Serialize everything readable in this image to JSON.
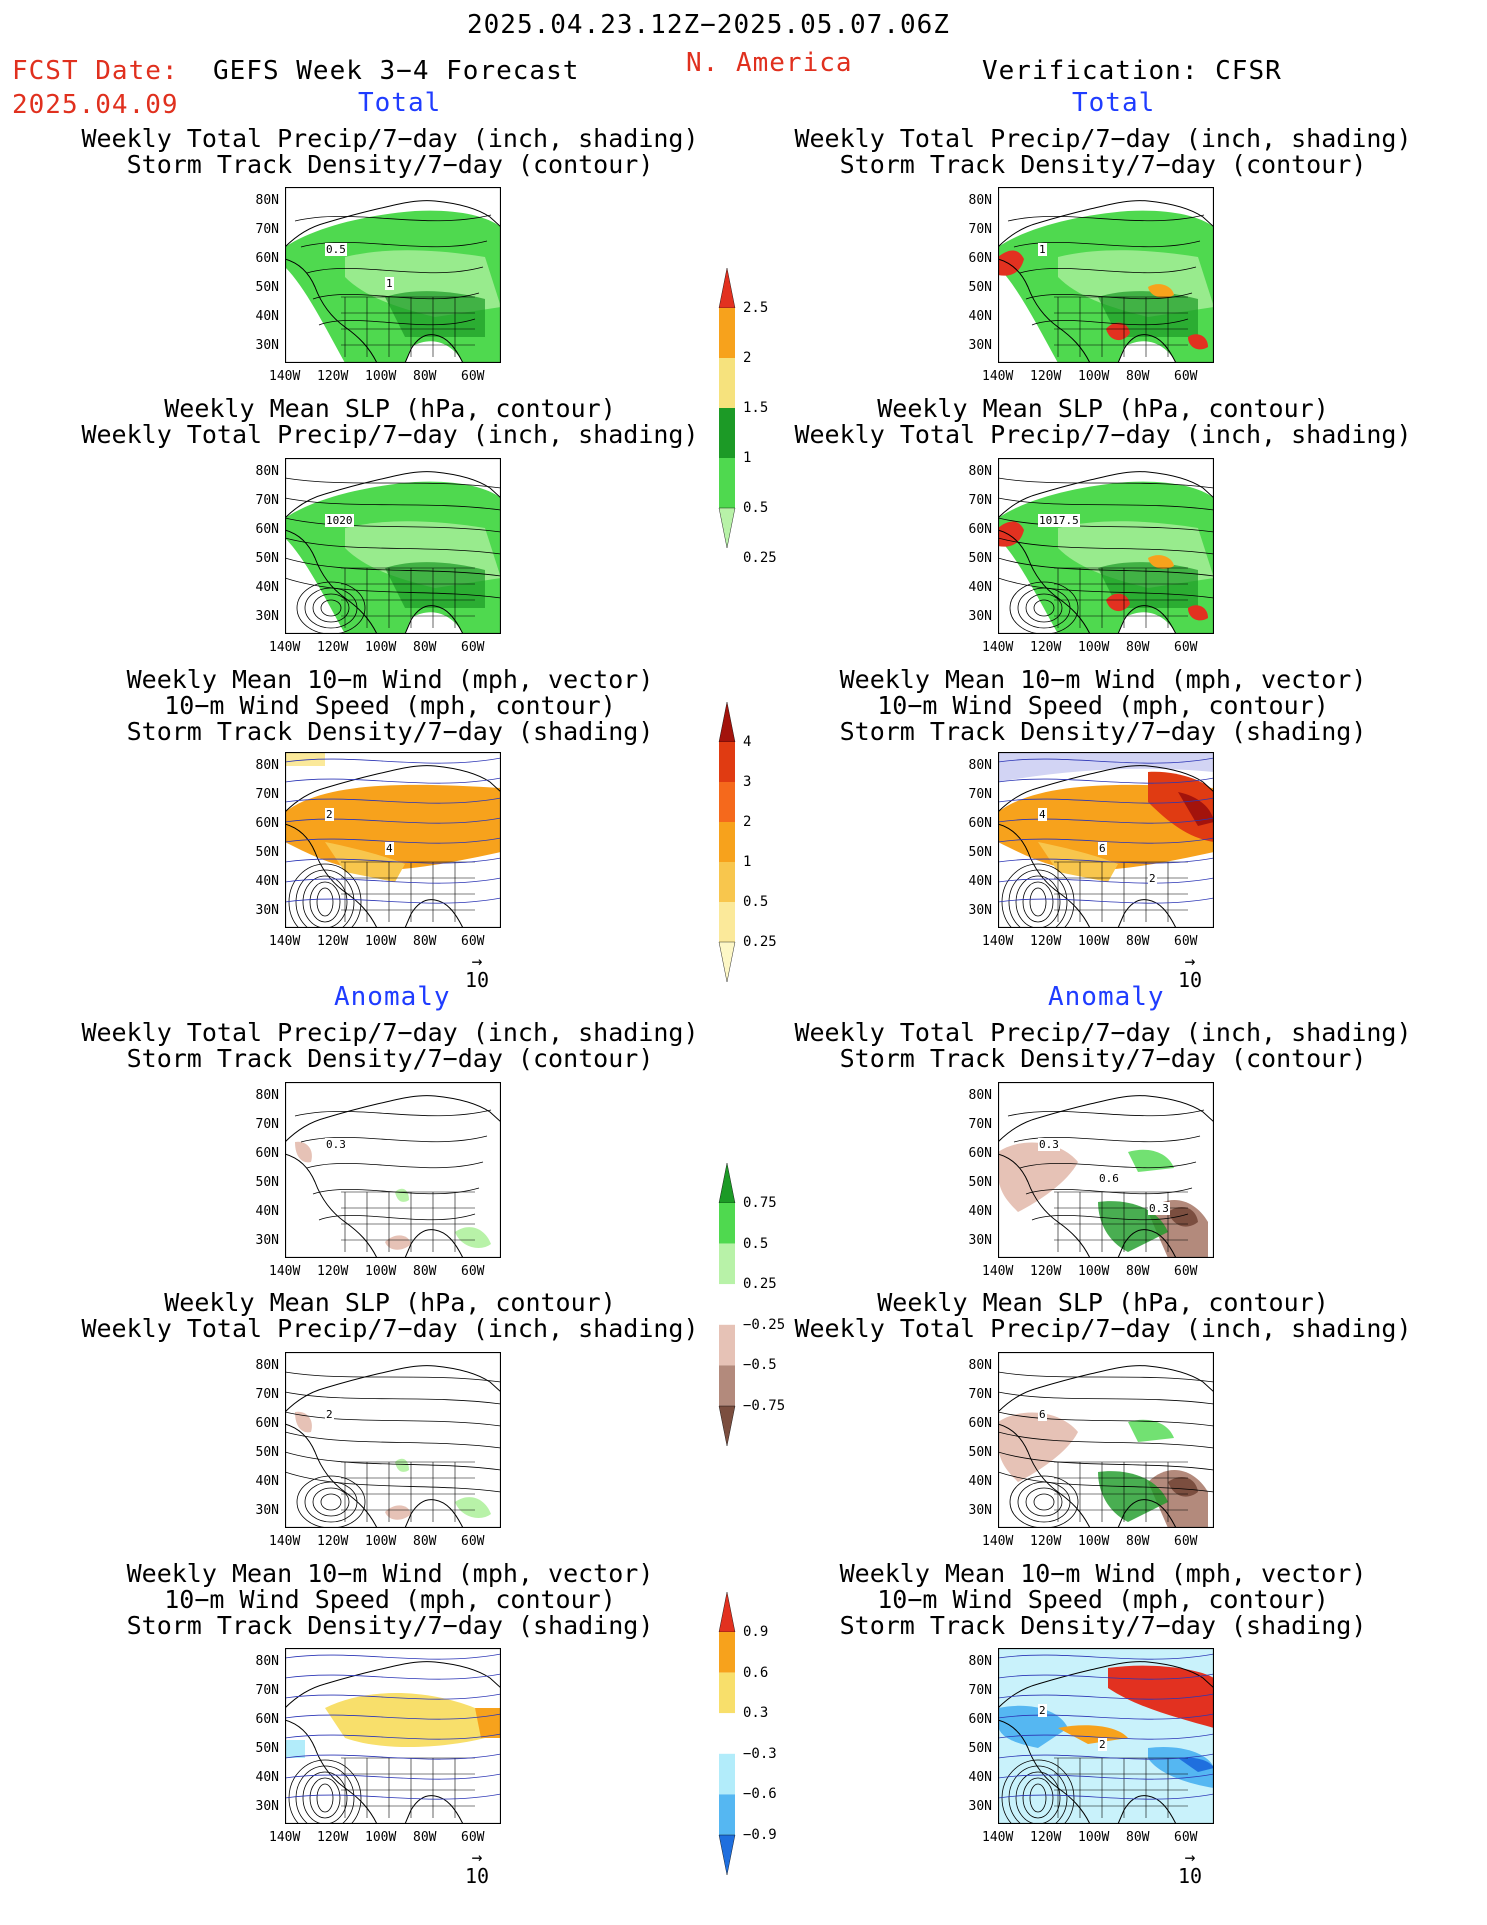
{
  "header": {
    "date_range": "2025.04.23.12Z−2025.05.07.06Z",
    "fcst_label": "FCST Date:",
    "fcst_date": "2025.04.09",
    "product": "GEFS Week 3−4 Forecast",
    "region": "N. America",
    "verification": "Verification: CFSR"
  },
  "sections": {
    "total": "Total",
    "anomaly": "Anomaly"
  },
  "titles": {
    "precip_track": [
      "Weekly Total Precip/7−day (inch, shading)",
      "Storm Track Density/7−day (contour)"
    ],
    "slp_precip": [
      "Weekly Mean SLP (hPa, contour)",
      "Weekly Total Precip/7−day (inch, shading)"
    ],
    "wind_track": [
      "Weekly Mean 10−m Wind (mph, vector)",
      "10−m Wind Speed (mph, contour)",
      "Storm Track Density/7−day (shading)"
    ]
  },
  "axes": {
    "lat_labels": [
      "80N",
      "70N",
      "60N",
      "50N",
      "40N",
      "30N"
    ],
    "lon_labels": [
      "140W",
      "120W",
      "100W",
      "80W",
      "60W"
    ]
  },
  "vector_ref": "10",
  "map_labels": {
    "fc_total_precip": [
      "0.5",
      "1"
    ],
    "fc_total_slp": [
      "1020"
    ],
    "fc_total_wind": [
      "2",
      "4"
    ],
    "ob_total_precip": [
      "1"
    ],
    "ob_total_slp": [
      "1017.5"
    ],
    "ob_total_wind": [
      "4",
      "6",
      "2"
    ],
    "fc_anom_precip": [
      "0.3"
    ],
    "fc_anom_slp": [
      "2"
    ],
    "ob_anom_precip": [
      "0.3",
      "0.6",
      "0.3"
    ],
    "ob_anom_slp": [
      "6"
    ],
    "ob_anom_wind": [
      "2",
      "2"
    ]
  },
  "colorbars": {
    "precip_total": {
      "labels": [
        "2.5",
        "2",
        "1.5",
        "1",
        "0.5",
        "0.25"
      ],
      "colors": [
        "#e23120",
        "#f7a21c",
        "#f6e27d",
        "#1c9a26",
        "#4fd94f",
        "#b8f2a8"
      ]
    },
    "track_total": {
      "labels": [
        "4",
        "3",
        "2",
        "1",
        "0.5",
        "0.25"
      ],
      "colors": [
        "#a3130c",
        "#e03b12",
        "#f5691c",
        "#f7a21c",
        "#f8c64d",
        "#fbe99a",
        "#fdf7c6"
      ]
    },
    "precip_anom": {
      "labels": [
        "0.75",
        "0.5",
        "0.25",
        "−0.25",
        "−0.5",
        "−0.75"
      ],
      "colors": [
        "#1c9a26",
        "#4fd94f",
        "#b8f2a8",
        "#ffffff",
        "#e6c2b6",
        "#b38a7c",
        "#7b4e3f"
      ]
    },
    "track_anom": {
      "labels": [
        "0.9",
        "0.6",
        "0.3",
        "−0.3",
        "−0.6",
        "−0.9"
      ],
      "colors": [
        "#e23120",
        "#f7a21c",
        "#f8df6b",
        "#ffffff",
        "#b2ecfa",
        "#55b7f2",
        "#1f6fde"
      ]
    }
  }
}
